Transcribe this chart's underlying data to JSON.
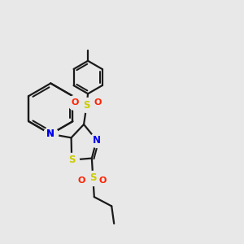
{
  "bg_color": "#e8e8e8",
  "bond_color": "#1a1a1a",
  "N_color": "#0000ee",
  "S_color": "#cccc00",
  "O_color": "#ff2200",
  "line_width": 1.6,
  "figsize": [
    3.0,
    3.0
  ],
  "dpi": 100,
  "xlim": [
    0,
    10
  ],
  "ylim": [
    0,
    10
  ]
}
